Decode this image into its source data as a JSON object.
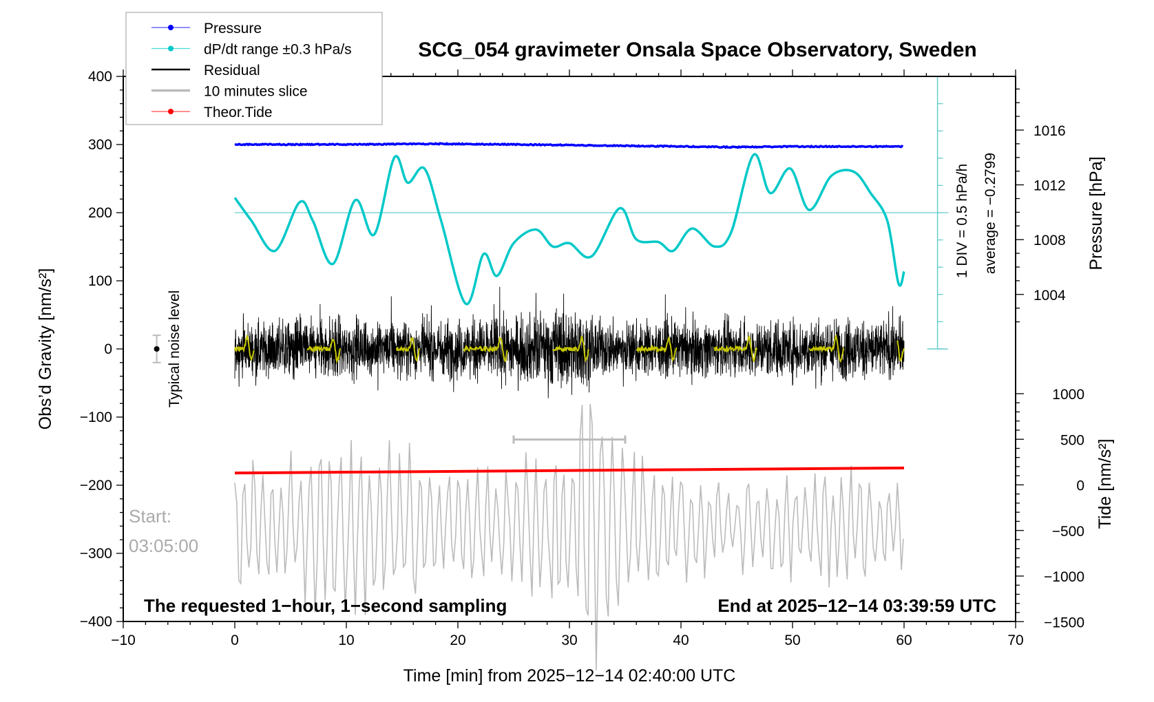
{
  "chart_data": {
    "type": "line",
    "title": "SCG_054 gravimeter Onsala Space Observatory, Sweden",
    "xlabel": "Time [min] from 2025−12−14 02:40:00 UTC",
    "ylabel": "Obs’d Gravity [nm/s²]",
    "ylabel_right_top": "Pressure [hPa]",
    "ylabel_right_bottom": "Tide [nm/s²]",
    "xlim": [
      -10,
      70
    ],
    "ylim": [
      -400,
      400
    ],
    "pressure_lim_ticks": [
      1004,
      1008,
      1012,
      1016
    ],
    "tide_ticks": [
      1000,
      500,
      0,
      -500,
      -1000,
      -1500
    ],
    "x_ticks": [
      "−10",
      "0",
      "10",
      "20",
      "30",
      "40",
      "50",
      "60",
      "70"
    ],
    "x_tick_values": [
      -10,
      0,
      10,
      20,
      30,
      40,
      50,
      60,
      70
    ],
    "y_ticks": [
      "400",
      "300",
      "200",
      "100",
      "0",
      "−100",
      "−200",
      "−300",
      "−400"
    ],
    "y_tick_values": [
      400,
      300,
      200,
      100,
      0,
      -100,
      -200,
      -300,
      -400
    ],
    "pressure_tick_labels": [
      "1004",
      "1008",
      "1012",
      "1016"
    ],
    "tide_tick_labels": [
      "1000",
      "500",
      "0",
      "−500",
      "−1000",
      "−1500"
    ],
    "legend": {
      "placement": "top-left",
      "items": [
        {
          "label": "Pressure",
          "color": "#0000ff",
          "marker": "dot"
        },
        {
          "label": "dP/dt range ±0.3 hPa/s",
          "color": "#00c8c8",
          "marker": "dot"
        },
        {
          "label": "Residual",
          "color": "#000000",
          "marker": "line"
        },
        {
          "label": "10 minutes slice",
          "color": "#bbbbbb",
          "marker": "line"
        },
        {
          "label": "Theor.Tide",
          "color": "#ff0000",
          "marker": "dot"
        }
      ]
    },
    "series": [
      {
        "name": "Pressure",
        "axis": "pressure_hPa",
        "color": "#0000ff",
        "x": [
          0,
          10,
          18,
          25,
          30,
          35,
          40,
          45,
          50,
          55,
          60
        ],
        "y": [
          1014.95,
          1014.95,
          1015.0,
          1014.95,
          1014.9,
          1014.85,
          1014.8,
          1014.75,
          1014.8,
          1014.8,
          1014.8
        ]
      },
      {
        "name": "dP/dt range ±0.3 hPa/s",
        "axis": "dpdt_hPa_per_h",
        "color": "#00c8c8",
        "x": [
          0,
          1.5,
          3.6,
          5.8,
          7,
          8.8,
          10.8,
          12.5,
          14.3,
          15.5,
          17,
          18.5,
          20.7,
          22.3,
          23.5,
          25,
          27,
          28.5,
          30,
          32,
          34.5,
          36,
          38,
          39.3,
          41,
          43,
          44.5,
          46.5,
          48,
          49.8,
          51.5,
          53.5,
          55.5,
          57,
          58.5,
          59.5,
          60
        ],
        "y": [
          -0.005,
          -0.43,
          -0.98,
          -0.09,
          -0.43,
          -1.22,
          -0.05,
          -0.68,
          0.73,
          0.27,
          0.53,
          -0.43,
          -1.95,
          -1.04,
          -1.44,
          -0.84,
          -0.59,
          -0.9,
          -0.84,
          -1.08,
          -0.2,
          -0.77,
          -0.82,
          -0.98,
          -0.57,
          -0.9,
          -0.64,
          0.78,
          0.08,
          0.53,
          -0.23,
          0.4,
          0.47,
          0.08,
          -0.43,
          -1.58,
          -1.36
        ]
      },
      {
        "name": "Residual",
        "axis": "gravity",
        "color": "#000000",
        "x": [
          0,
          5,
          9,
          13,
          20,
          26,
          30,
          33,
          40,
          45,
          50,
          55,
          60
        ],
        "amplitude": [
          45,
          55,
          60,
          45,
          55,
          60,
          80,
          50,
          50,
          50,
          55,
          55,
          55
        ]
      },
      {
        "name": "Smoothed residual",
        "axis": "gravity",
        "color": "#c8c800",
        "segments": [
          [
            0,
            1.8
          ],
          [
            6.5,
            9.5
          ],
          [
            14.5,
            16.6
          ],
          [
            20.5,
            24.5
          ],
          [
            28.5,
            31.8
          ],
          [
            36,
            39.6
          ],
          [
            43,
            46.8
          ],
          [
            51.5,
            54.6
          ],
          [
            59.4,
            60
          ]
        ]
      },
      {
        "name": "10 minutes slice",
        "axis": "gravity",
        "color": "#bbbbbb",
        "center": -260,
        "x": [
          0,
          5,
          10,
          15,
          20,
          25,
          30,
          32,
          35,
          40,
          45,
          50,
          55,
          60
        ],
        "amplitude": [
          90,
          100,
          120,
          110,
          70,
          90,
          130,
          260,
          110,
          80,
          60,
          70,
          80,
          60
        ]
      },
      {
        "name": "Theor.Tide",
        "axis": "tide",
        "color": "#ff0000",
        "x": [
          0,
          60
        ],
        "y": [
          130,
          185
        ]
      }
    ],
    "dpdt_axis": {
      "time": 63,
      "average": -0.2799,
      "div": 0.5,
      "div_label": "1 DIV = 0.5 hPa/h",
      "average_label": "average = −0.2799"
    },
    "noise_level": {
      "time": -7,
      "value": 0,
      "error": 20,
      "label": "Typical noise level"
    },
    "slice_marker": {
      "from": 25,
      "to": 35,
      "value": -133
    },
    "annotations": {
      "start_label": "Start:",
      "start_time": "03:05:00",
      "bottom_left": "The requested 1−hour, 1−second sampling",
      "bottom_right": "End at 2025−12−14 03:39:59 UTC"
    },
    "grid": false
  }
}
